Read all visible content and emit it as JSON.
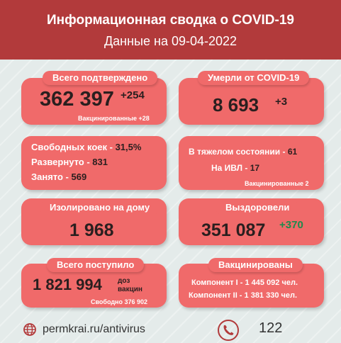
{
  "header": {
    "title": "Информационная сводка о COVID-19",
    "subtitle": "Данные на 09-04-2022"
  },
  "confirmed": {
    "label": "Всего подтверждено",
    "value": "362 397",
    "delta": "+254",
    "note": "Вакцинированные +28"
  },
  "deaths": {
    "label": "Умерли от COVID-19",
    "value": "8 693",
    "delta": "+3"
  },
  "beds": {
    "free_label": "Свободных коек - ",
    "free_value": "31,5%",
    "deployed_label": "Развернуто - ",
    "deployed_value": "831",
    "occupied_label": "Занято - ",
    "occupied_value": "569"
  },
  "severe": {
    "label": "В тяжелом состоянии - ",
    "value": "61",
    "ivl_label": "На ИВЛ - ",
    "ivl_value": "17",
    "note": "Вакцинированные 2"
  },
  "isolated": {
    "label": "Изолировано на дому",
    "value": "1 968"
  },
  "recovered": {
    "label": "Выздоровели",
    "value": "351 087",
    "delta": "+370"
  },
  "vaccine_supply": {
    "label": "Всего поступило",
    "value": "1 821 994",
    "unit_line1": "доз",
    "unit_line2": "вакцин",
    "note": "Свободно 376 902"
  },
  "vaccinated": {
    "label": "Вакцинированы",
    "component1": "Компонент I - 1 445 092 чел.",
    "component2": "Компонент II - 1 381 330 чел."
  },
  "footer": {
    "website": "permkrai.ru/antivirus",
    "phone": "122"
  }
}
